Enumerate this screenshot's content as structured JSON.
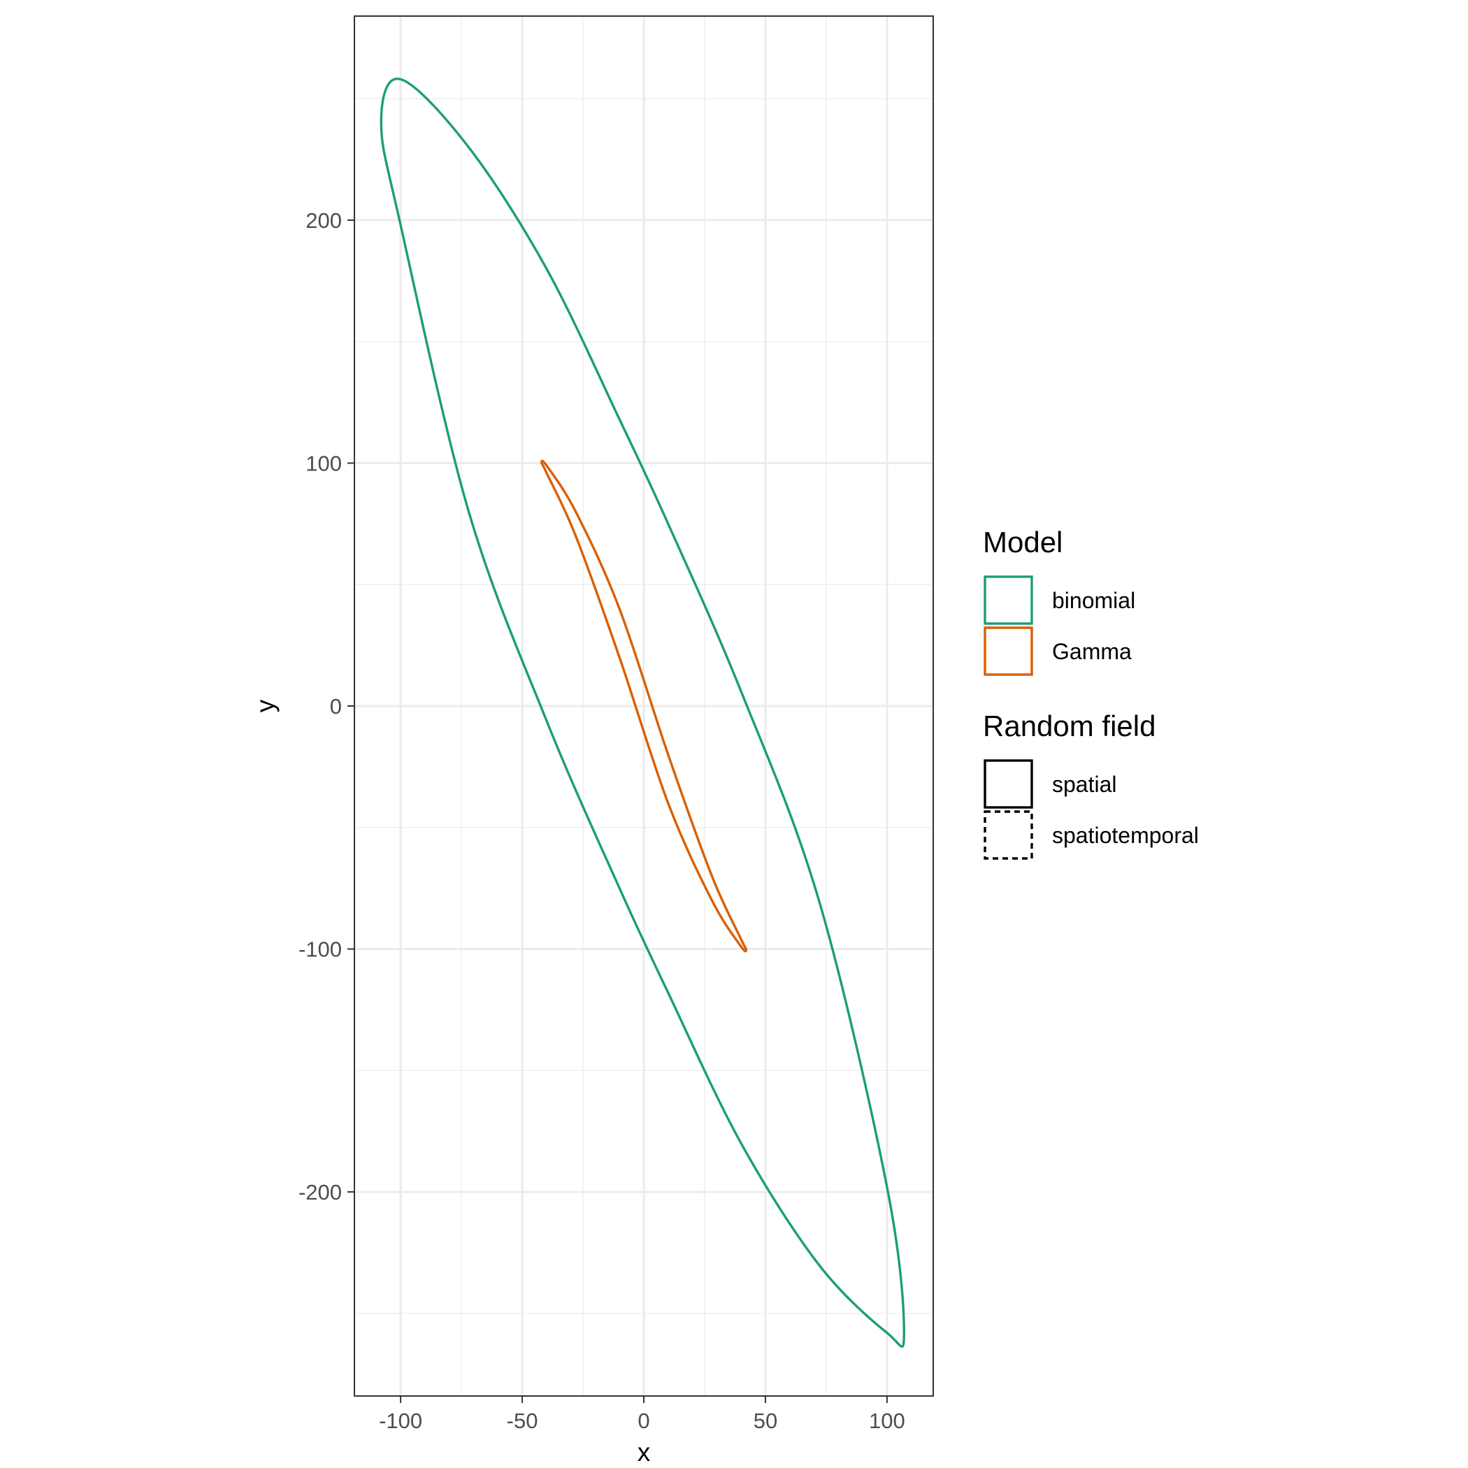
{
  "chart_data": {
    "type": "line",
    "title": "",
    "xlabel": "x",
    "ylabel": "y",
    "xlim": [
      -119,
      119
    ],
    "ylim": [
      -284,
      284
    ],
    "x_ticks": [
      -100,
      -50,
      0,
      50,
      100
    ],
    "x_tick_labels": [
      "-100",
      "-50",
      "0",
      "50",
      "100"
    ],
    "y_ticks": [
      -200,
      -100,
      0,
      100,
      200
    ],
    "y_tick_labels": [
      "-200",
      "-100",
      "0",
      "100",
      "200"
    ],
    "grid": true,
    "legend_position": "right",
    "series": [
      {
        "name": "binomial",
        "color": "#1b9e77",
        "linetype": "solid",
        "x": [
          -100,
          -72,
          -40,
          -10,
          10,
          40,
          72,
          100,
          107,
          100,
          72,
          40,
          10,
          -10,
          -40,
          -72,
          -100,
          -108,
          -100
        ],
        "y": [
          258,
          230,
          180,
          118,
          75,
          6,
          -80,
          -198,
          -258,
          -258,
          -230,
          -180,
          -118,
          -75,
          -6,
          80,
          198,
          240,
          258
        ]
      },
      {
        "name": "Gamma",
        "color": "#d95f02",
        "linetype": "solid",
        "x": [
          -40,
          -28,
          -10,
          10,
          28,
          40,
          42,
          40,
          28,
          10,
          -10,
          -28,
          -40,
          -42,
          -40
        ],
        "y": [
          99,
          80,
          40,
          -20,
          -70,
          -96,
          -100,
          -99,
          -80,
          -40,
          20,
          70,
          96,
          100,
          99
        ]
      }
    ],
    "legends": [
      {
        "title": "Model",
        "items": [
          {
            "label": "binomial",
            "color": "#1b9e77",
            "linetype": "solid"
          },
          {
            "label": "Gamma",
            "color": "#d95f02",
            "linetype": "solid"
          }
        ]
      },
      {
        "title": "Random field",
        "items": [
          {
            "label": "spatial",
            "color": "#000000",
            "linetype": "solid"
          },
          {
            "label": "spatiotemporal",
            "color": "#000000",
            "linetype": "dashed"
          }
        ]
      }
    ]
  }
}
